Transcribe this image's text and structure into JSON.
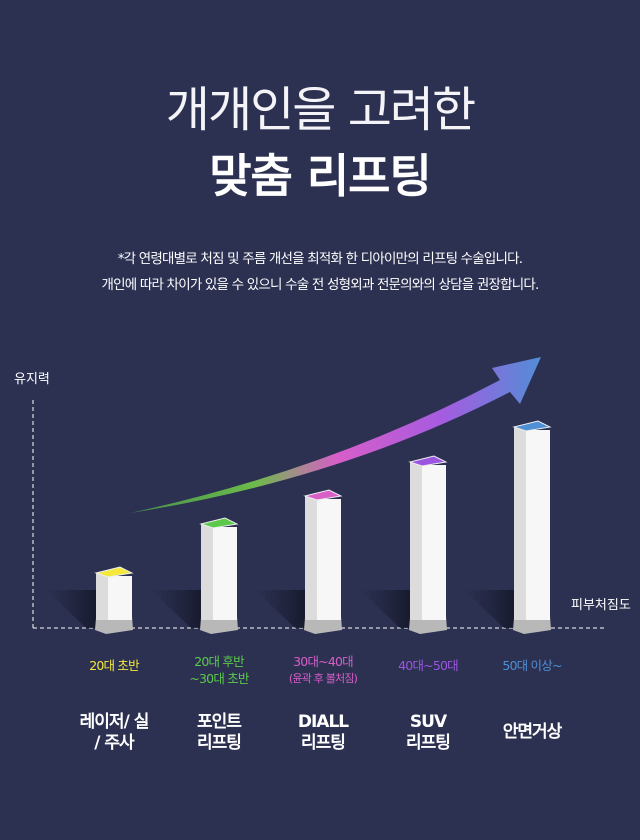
{
  "header": {
    "title_line1": "개개인을 고려한",
    "title_line2": "맞춤 리프팅"
  },
  "description": [
    "*각 연령대별로 처짐 및 주름 개선을 최적화 한 디아이만의 리프팅 수술입니다.",
    "개인에 따라 차이가 있을 수 있으니 수술 전 성형외과 전문의와의 상담을 권장합니다."
  ],
  "colors": {
    "background": "#2c3152",
    "bar": "#f7f7f7",
    "base": "#bdbdbd"
  },
  "chart_data": {
    "type": "bar",
    "ylabel": "유지력",
    "xlabel": "피부처짐도",
    "grid": false,
    "categories": [
      "20대 초반",
      "20대 후반 ~30대 초반",
      "30대~40대 (윤곽 후 볼처짐)",
      "40대~50대",
      "50대 이상~"
    ],
    "values": [
      47,
      96,
      124,
      158,
      193
    ],
    "bars": [
      {
        "age": [
          "20대 초반"
        ],
        "procedure": [
          "레이저/ 실",
          "/ 주사"
        ],
        "color": "#f5e83c"
      },
      {
        "age": [
          "20대 후반",
          "~30대 초반"
        ],
        "procedure": [
          "포인트",
          "리프팅"
        ],
        "color": "#5cc94a"
      },
      {
        "age": [
          "30대~40대"
        ],
        "age_sub": "(윤곽 후 볼처짐)",
        "procedure": [
          "DIALL",
          "리프팅"
        ],
        "color": "#d85ec8"
      },
      {
        "age": [
          "40대~50대"
        ],
        "procedure": [
          "SUV",
          "리프팅"
        ],
        "color": "#9b55e0"
      },
      {
        "age": [
          "50대 이상~"
        ],
        "procedure": [
          "안면거상"
        ],
        "color": "#4f8fd6"
      }
    ],
    "arrow": "trend arrow rising left to right, gradient green→pink→purple→blue"
  }
}
